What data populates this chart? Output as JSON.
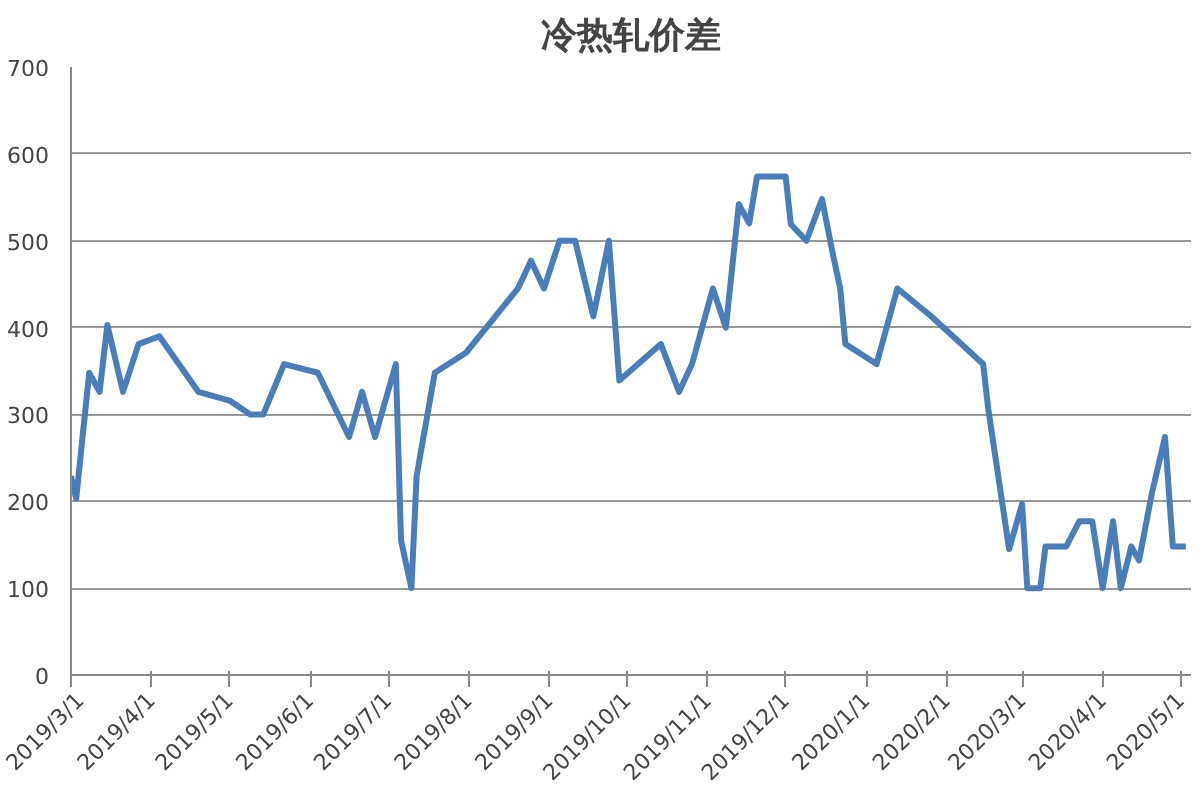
{
  "chart_data": {
    "type": "line",
    "title": "冷热轧价差",
    "x": [
      "2019-03-01",
      "2019-03-03",
      "2019-03-08",
      "2019-03-12",
      "2019-03-15",
      "2019-03-21",
      "2019-03-27",
      "2019-04-04",
      "2019-04-19",
      "2019-05-01",
      "2019-05-09",
      "2019-05-14",
      "2019-05-22",
      "2019-06-04",
      "2019-06-16",
      "2019-06-21",
      "2019-06-26",
      "2019-07-04",
      "2019-07-06",
      "2019-07-10",
      "2019-07-12",
      "2019-07-19",
      "2019-07-31",
      "2019-08-20",
      "2019-08-25",
      "2019-08-30",
      "2019-09-05",
      "2019-09-11",
      "2019-09-18",
      "2019-09-24",
      "2019-09-28",
      "2019-10-14",
      "2019-10-21",
      "2019-10-26",
      "2019-11-03",
      "2019-11-08",
      "2019-11-13",
      "2019-11-17",
      "2019-11-20",
      "2019-12-01",
      "2019-12-03",
      "2019-12-09",
      "2019-12-15",
      "2019-12-19",
      "2019-12-22",
      "2019-12-24",
      "2020-01-05",
      "2020-01-13",
      "2020-01-26",
      "2020-02-15",
      "2020-02-17",
      "2020-02-25",
      "2020-03-01",
      "2020-03-03",
      "2020-03-08",
      "2020-03-10",
      "2020-03-18",
      "2020-03-23",
      "2020-03-28",
      "2020-04-01",
      "2020-04-05",
      "2020-04-08",
      "2020-04-12",
      "2020-04-15",
      "2020-04-20",
      "2020-04-25",
      "2020-04-28",
      "2020-05-03"
    ],
    "series": [
      {
        "color": "#4a7ebb",
        "values": [
          229,
          203,
          348,
          326,
          403,
          326,
          381,
          390,
          326,
          316,
          300,
          300,
          358,
          348,
          274,
          326,
          274,
          358,
          155,
          100,
          229,
          348,
          371,
          445,
          477,
          445,
          500,
          500,
          413,
          500,
          339,
          381,
          326,
          358,
          445,
          400,
          542,
          520,
          574,
          574,
          519,
          500,
          548,
          487,
          445,
          381,
          358,
          445,
          413,
          358,
          306,
          145,
          197,
          100,
          100,
          148,
          148,
          177,
          177,
          100,
          177,
          100,
          148,
          132,
          210,
          274,
          148,
          148
        ]
      }
    ],
    "xlim": [
      "2019-03-01",
      "2020-05-05"
    ],
    "xticks": [
      {
        "value": "2019-03-01",
        "label": "2019/3/1"
      },
      {
        "value": "2019-04-01",
        "label": "2019/4/1"
      },
      {
        "value": "2019-05-01",
        "label": "2019/5/1"
      },
      {
        "value": "2019-06-01",
        "label": "2019/6/1"
      },
      {
        "value": "2019-07-01",
        "label": "2019/7/1"
      },
      {
        "value": "2019-08-01",
        "label": "2019/8/1"
      },
      {
        "value": "2019-09-01",
        "label": "2019/9/1"
      },
      {
        "value": "2019-10-01",
        "label": "2019/10/1"
      },
      {
        "value": "2019-11-01",
        "label": "2019/11/1"
      },
      {
        "value": "2019-12-01",
        "label": "2019/12/1"
      },
      {
        "value": "2020-01-01",
        "label": "2020/1/1"
      },
      {
        "value": "2020-02-01",
        "label": "2020/2/1"
      },
      {
        "value": "2020-03-01",
        "label": "2020/3/1"
      },
      {
        "value": "2020-04-01",
        "label": "2020/4/1"
      },
      {
        "value": "2020-05-01",
        "label": "2020/5/1"
      }
    ],
    "ylim": [
      0,
      700
    ],
    "yticks": [
      0,
      100,
      200,
      300,
      400,
      500,
      600,
      700
    ],
    "grid": "y",
    "marker": "none",
    "line_style": "solid"
  }
}
